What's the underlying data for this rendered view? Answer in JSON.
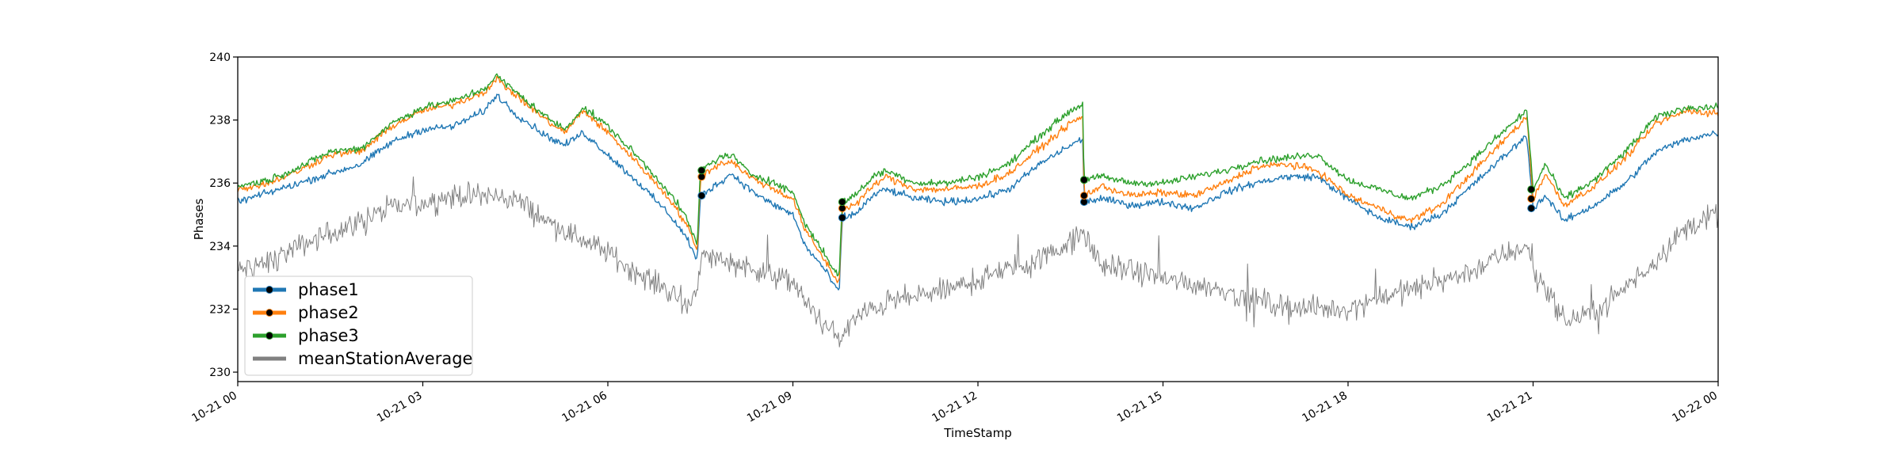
{
  "chart_data": {
    "type": "line",
    "xlabel": "TimeStamp",
    "ylabel": "Phases",
    "xlim": [
      "10-21 00:00",
      "10-22 00:00"
    ],
    "ylim": [
      229.7,
      240
    ],
    "x_ticks": [
      {
        "hour": 0,
        "label": "10-21 00"
      },
      {
        "hour": 3,
        "label": "10-21 03"
      },
      {
        "hour": 6,
        "label": "10-21 06"
      },
      {
        "hour": 9,
        "label": "10-21 09"
      },
      {
        "hour": 12,
        "label": "10-21 12"
      },
      {
        "hour": 15,
        "label": "10-21 15"
      },
      {
        "hour": 18,
        "label": "10-21 18"
      },
      {
        "hour": 21,
        "label": "10-21 21"
      },
      {
        "hour": 24,
        "label": "10-22 00"
      }
    ],
    "y_ticks": [
      230,
      232,
      234,
      236,
      238,
      240
    ],
    "grid": false,
    "legend_position": "lower-left",
    "x_unit": "hours since 10-21 00:00",
    "series": [
      {
        "name": "phase1",
        "color": "#1f77b4",
        "marker_color": "#000000",
        "points": [
          [
            0,
            235.4
          ],
          [
            0.5,
            235.7
          ],
          [
            1,
            236.0
          ],
          [
            1.5,
            236.3
          ],
          [
            2,
            236.6
          ],
          [
            2.5,
            237.3
          ],
          [
            3,
            237.7
          ],
          [
            3.5,
            237.8
          ],
          [
            4,
            238.3
          ],
          [
            4.2,
            238.8
          ],
          [
            4.5,
            238.2
          ],
          [
            5,
            237.5
          ],
          [
            5.3,
            237.2
          ],
          [
            5.6,
            237.6
          ],
          [
            6,
            236.9
          ],
          [
            6.5,
            236.0
          ],
          [
            7,
            235.0
          ],
          [
            7.3,
            234.2
          ],
          [
            7.45,
            233.5
          ],
          [
            7.5,
            235.6
          ],
          [
            7.8,
            236.0
          ],
          [
            8,
            236.3
          ],
          [
            8.3,
            235.8
          ],
          [
            8.6,
            235.4
          ],
          [
            9,
            235.0
          ],
          [
            9.2,
            234.0
          ],
          [
            9.5,
            233.3
          ],
          [
            9.75,
            232.5
          ],
          [
            9.8,
            234.9
          ],
          [
            10,
            235.0
          ],
          [
            10.3,
            235.6
          ],
          [
            10.5,
            235.8
          ],
          [
            11,
            235.5
          ],
          [
            11.5,
            235.4
          ],
          [
            12,
            235.5
          ],
          [
            12.5,
            235.8
          ],
          [
            13,
            236.6
          ],
          [
            13.5,
            237.2
          ],
          [
            13.7,
            237.4
          ],
          [
            13.72,
            235.4
          ],
          [
            14,
            235.5
          ],
          [
            14.5,
            235.3
          ],
          [
            15,
            235.4
          ],
          [
            15.5,
            235.2
          ],
          [
            16,
            235.7
          ],
          [
            16.5,
            236.0
          ],
          [
            17,
            236.2
          ],
          [
            17.5,
            236.2
          ],
          [
            18,
            235.5
          ],
          [
            18.5,
            234.9
          ],
          [
            19,
            234.6
          ],
          [
            19.5,
            235.0
          ],
          [
            20,
            235.9
          ],
          [
            20.5,
            236.8
          ],
          [
            20.9,
            237.5
          ],
          [
            21,
            235.2
          ],
          [
            21.2,
            235.6
          ],
          [
            21.5,
            234.8
          ],
          [
            22,
            235.3
          ],
          [
            22.5,
            236.0
          ],
          [
            23,
            237.0
          ],
          [
            23.5,
            237.4
          ],
          [
            24,
            237.6
          ]
        ],
        "markers": [
          [
            7.52,
            235.6
          ],
          [
            9.8,
            234.9
          ],
          [
            13.72,
            235.4
          ],
          [
            20.97,
            235.2
          ]
        ]
      },
      {
        "name": "phase2",
        "color": "#ff7f0e",
        "marker_color": "#000000",
        "points": [
          [
            0,
            235.8
          ],
          [
            0.5,
            236.0
          ],
          [
            1,
            236.4
          ],
          [
            1.5,
            236.9
          ],
          [
            2,
            237.0
          ],
          [
            2.5,
            237.8
          ],
          [
            3,
            238.3
          ],
          [
            3.5,
            238.5
          ],
          [
            4,
            238.9
          ],
          [
            4.2,
            239.3
          ],
          [
            4.5,
            238.8
          ],
          [
            5,
            238.0
          ],
          [
            5.3,
            237.6
          ],
          [
            5.6,
            238.3
          ],
          [
            6,
            237.6
          ],
          [
            6.5,
            236.6
          ],
          [
            7,
            235.5
          ],
          [
            7.3,
            234.6
          ],
          [
            7.45,
            233.8
          ],
          [
            7.5,
            236.2
          ],
          [
            7.8,
            236.6
          ],
          [
            8,
            236.7
          ],
          [
            8.3,
            236.2
          ],
          [
            8.6,
            235.9
          ],
          [
            9,
            235.5
          ],
          [
            9.2,
            234.5
          ],
          [
            9.5,
            233.6
          ],
          [
            9.75,
            232.8
          ],
          [
            9.8,
            235.2
          ],
          [
            10,
            235.3
          ],
          [
            10.3,
            235.9
          ],
          [
            10.5,
            236.2
          ],
          [
            11,
            235.8
          ],
          [
            11.5,
            235.8
          ],
          [
            12,
            235.9
          ],
          [
            12.5,
            236.3
          ],
          [
            13,
            237.1
          ],
          [
            13.5,
            237.9
          ],
          [
            13.7,
            238.1
          ],
          [
            13.72,
            235.6
          ],
          [
            14,
            235.9
          ],
          [
            14.5,
            235.6
          ],
          [
            15,
            235.7
          ],
          [
            15.5,
            235.6
          ],
          [
            16,
            236.0
          ],
          [
            16.5,
            236.5
          ],
          [
            17,
            236.6
          ],
          [
            17.5,
            236.4
          ],
          [
            18,
            235.6
          ],
          [
            18.5,
            235.2
          ],
          [
            19,
            234.8
          ],
          [
            19.5,
            235.3
          ],
          [
            20,
            236.3
          ],
          [
            20.5,
            237.3
          ],
          [
            20.9,
            238.1
          ],
          [
            21,
            235.5
          ],
          [
            21.2,
            236.3
          ],
          [
            21.5,
            235.3
          ],
          [
            22,
            235.9
          ],
          [
            22.5,
            236.8
          ],
          [
            23,
            237.9
          ],
          [
            23.5,
            238.3
          ],
          [
            24,
            238.2
          ]
        ],
        "markers": [
          [
            7.52,
            236.2
          ],
          [
            9.8,
            235.2
          ],
          [
            13.72,
            235.6
          ],
          [
            20.97,
            235.5
          ]
        ]
      },
      {
        "name": "phase3",
        "color": "#2ca02c",
        "marker_color": "#000000",
        "points": [
          [
            0,
            235.9
          ],
          [
            0.5,
            236.1
          ],
          [
            1,
            236.5
          ],
          [
            1.5,
            237.0
          ],
          [
            2,
            237.1
          ],
          [
            2.5,
            237.9
          ],
          [
            3,
            238.4
          ],
          [
            3.5,
            238.6
          ],
          [
            4,
            239.0
          ],
          [
            4.2,
            239.4
          ],
          [
            4.5,
            238.9
          ],
          [
            5,
            238.1
          ],
          [
            5.3,
            237.7
          ],
          [
            5.6,
            238.4
          ],
          [
            6,
            237.8
          ],
          [
            6.5,
            236.8
          ],
          [
            7,
            235.7
          ],
          [
            7.3,
            234.8
          ],
          [
            7.45,
            234.0
          ],
          [
            7.5,
            236.4
          ],
          [
            7.8,
            236.8
          ],
          [
            8,
            236.9
          ],
          [
            8.3,
            236.3
          ],
          [
            8.6,
            236.1
          ],
          [
            9,
            235.7
          ],
          [
            9.2,
            234.7
          ],
          [
            9.5,
            233.8
          ],
          [
            9.75,
            233.0
          ],
          [
            9.8,
            235.4
          ],
          [
            10,
            235.6
          ],
          [
            10.3,
            236.2
          ],
          [
            10.5,
            236.4
          ],
          [
            11,
            236.0
          ],
          [
            11.5,
            236.0
          ],
          [
            12,
            236.2
          ],
          [
            12.5,
            236.6
          ],
          [
            13,
            237.5
          ],
          [
            13.5,
            238.3
          ],
          [
            13.7,
            238.5
          ],
          [
            13.72,
            236.1
          ],
          [
            14,
            236.2
          ],
          [
            14.5,
            236.0
          ],
          [
            15,
            236.0
          ],
          [
            15.5,
            236.2
          ],
          [
            16,
            236.4
          ],
          [
            16.5,
            236.7
          ],
          [
            17,
            236.8
          ],
          [
            17.5,
            236.9
          ],
          [
            18,
            236.1
          ],
          [
            18.5,
            235.8
          ],
          [
            19,
            235.5
          ],
          [
            19.5,
            235.9
          ],
          [
            20,
            236.7
          ],
          [
            20.5,
            237.6
          ],
          [
            20.9,
            238.3
          ],
          [
            21,
            235.8
          ],
          [
            21.2,
            236.6
          ],
          [
            21.5,
            235.5
          ],
          [
            22,
            236.1
          ],
          [
            22.5,
            237.0
          ],
          [
            23,
            238.1
          ],
          [
            23.5,
            238.4
          ],
          [
            24,
            238.4
          ]
        ],
        "markers": [
          [
            7.52,
            236.4
          ],
          [
            9.8,
            235.4
          ],
          [
            13.72,
            236.1
          ],
          [
            20.97,
            235.8
          ]
        ]
      },
      {
        "name": "meanStationAverage",
        "color": "#808080",
        "points": [
          [
            0,
            233.2
          ],
          [
            0.5,
            233.5
          ],
          [
            1,
            234.0
          ],
          [
            1.5,
            234.4
          ],
          [
            2,
            234.8
          ],
          [
            2.5,
            235.2
          ],
          [
            3,
            235.4
          ],
          [
            3.5,
            235.6
          ],
          [
            4,
            235.6
          ],
          [
            4.5,
            235.5
          ],
          [
            5,
            234.8
          ],
          [
            5.5,
            234.3
          ],
          [
            6,
            233.8
          ],
          [
            6.5,
            233.1
          ],
          [
            7,
            232.6
          ],
          [
            7.3,
            232.0
          ],
          [
            7.45,
            232.8
          ],
          [
            7.55,
            233.7
          ],
          [
            7.8,
            233.6
          ],
          [
            8,
            233.5
          ],
          [
            8.5,
            233.2
          ],
          [
            9,
            232.8
          ],
          [
            9.3,
            232.0
          ],
          [
            9.6,
            231.3
          ],
          [
            9.8,
            231.1
          ],
          [
            10,
            231.7
          ],
          [
            10.5,
            232.2
          ],
          [
            11,
            232.4
          ],
          [
            11.5,
            232.6
          ],
          [
            12,
            232.9
          ],
          [
            12.5,
            233.3
          ],
          [
            13,
            233.6
          ],
          [
            13.5,
            234.1
          ],
          [
            13.7,
            234.4
          ],
          [
            14,
            233.4
          ],
          [
            14.5,
            233.2
          ],
          [
            15,
            233.0
          ],
          [
            15.5,
            232.8
          ],
          [
            16,
            232.6
          ],
          [
            16.5,
            232.3
          ],
          [
            17,
            232.1
          ],
          [
            17.5,
            232.0
          ],
          [
            18,
            232.0
          ],
          [
            18.5,
            232.4
          ],
          [
            19,
            232.6
          ],
          [
            19.5,
            232.9
          ],
          [
            20,
            233.2
          ],
          [
            20.5,
            233.7
          ],
          [
            20.9,
            234.0
          ],
          [
            21,
            233.2
          ],
          [
            21.3,
            232.4
          ],
          [
            21.5,
            231.6
          ],
          [
            22,
            231.9
          ],
          [
            22.5,
            232.7
          ],
          [
            23,
            233.6
          ],
          [
            23.5,
            234.6
          ],
          [
            24,
            235.0
          ]
        ]
      }
    ]
  }
}
